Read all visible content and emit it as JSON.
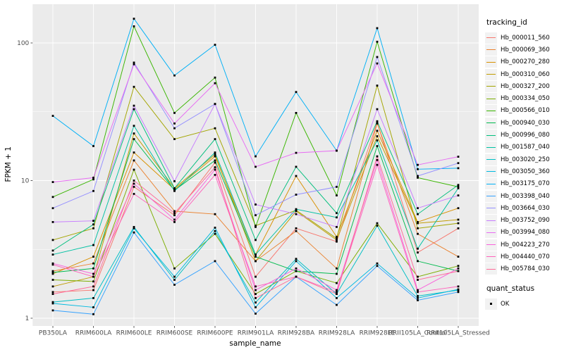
{
  "figure": {
    "background": "#FFFFFF",
    "panel_background": "#EBEBEB",
    "grid_color": "#FFFFFF",
    "tick_color": "#333333",
    "tick_label_color": "#4D4D4D"
  },
  "axes": {
    "x_title": "sample_name",
    "y_title": "FPKM + 1",
    "y_tick_labels": [
      "100",
      "10",
      "1"
    ]
  },
  "legend": {
    "tracking_title": "tracking_id",
    "quant_title": "quant_status",
    "quant_items": [
      {
        "label": "OK",
        "symbol": "black-square"
      }
    ]
  },
  "chart_data": {
    "type": "line",
    "title": "",
    "xlabel": "sample_name",
    "ylabel": "FPKM + 1",
    "y_scale": "log10",
    "ylim": [
      0.88,
      190
    ],
    "y_major_ticks": [
      1,
      10,
      100
    ],
    "y_minor_ticks": [
      3.1623,
      31.623
    ],
    "grid": true,
    "legend_position": "right",
    "point_marker": {
      "shape": "square",
      "color": "#000000",
      "status_label": "OK"
    },
    "categories": [
      "PB350LA",
      "RRIM600LA",
      "RRIM600LE",
      "RRIM600SE",
      "RRIM600PE",
      "RRIM901LA",
      "RRIM928BA",
      "RRIM928LA",
      "RRIM928LE",
      "RRII105LA_Control",
      "RRII105LA_Stressed"
    ],
    "series": [
      {
        "name": "Hb_000011_560",
        "color": "#F8766D",
        "values": [
          1.55,
          1.6,
          9.0,
          5.6,
          13.5,
          2.0,
          4.5,
          3.6,
          26.5,
          3.0,
          4.5
        ]
      },
      {
        "name": "Hb_000069_360",
        "color": "#EA8331",
        "values": [
          2.2,
          2.5,
          14,
          6.0,
          5.7,
          2.6,
          4.3,
          2.3,
          26,
          4.1,
          2.8
        ]
      },
      {
        "name": "Hb_000270_280",
        "color": "#D89000",
        "values": [
          2.1,
          2.8,
          16,
          8.6,
          15,
          2.9,
          10.8,
          3.9,
          23,
          5.0,
          6.3
        ]
      },
      {
        "name": "Hb_000310_060",
        "color": "#C09B00",
        "values": [
          1.7,
          2.0,
          22,
          8.8,
          15.5,
          2.6,
          6.0,
          3.7,
          21,
          4.9,
          5.2
        ]
      },
      {
        "name": "Hb_000327_200",
        "color": "#A3A500",
        "values": [
          3.7,
          4.5,
          48,
          20,
          24,
          4.7,
          6.1,
          3.8,
          49,
          4.5,
          4.9
        ]
      },
      {
        "name": "Hb_000334_050",
        "color": "#7CAE00",
        "values": [
          1.9,
          1.85,
          12,
          2.3,
          4.1,
          1.5,
          2.2,
          1.8,
          4.9,
          2.0,
          2.4
        ]
      },
      {
        "name": "Hb_000566_010",
        "color": "#39B600",
        "values": [
          7.6,
          10.2,
          132,
          31,
          56,
          4.6,
          31,
          7.8,
          102,
          10.5,
          9.0
        ]
      },
      {
        "name": "Hb_000940_030",
        "color": "#00BB4E",
        "values": [
          2.15,
          2.3,
          20,
          8.5,
          14,
          2.8,
          2.2,
          2.1,
          17.8,
          2.6,
          2.2
        ]
      },
      {
        "name": "Hb_000996_080",
        "color": "#00BF7D",
        "values": [
          3.1,
          4.8,
          33,
          8.8,
          20,
          3.7,
          12.6,
          5.8,
          27,
          5.7,
          9.3
        ]
      },
      {
        "name": "Hb_001587_040",
        "color": "#00C1A3",
        "values": [
          2.9,
          3.4,
          25,
          8.4,
          16,
          2.9,
          6.2,
          5.4,
          19.6,
          3.2,
          8.8
        ]
      },
      {
        "name": "Hb_003020_250",
        "color": "#00BFC4",
        "values": [
          1.31,
          1.4,
          4.6,
          1.9,
          4.3,
          1.3,
          2.7,
          1.5,
          4.7,
          1.45,
          1.6
        ]
      },
      {
        "name": "Hb_003050_360",
        "color": "#00BAE0",
        "values": [
          1.28,
          1.2,
          4.5,
          2.0,
          4.55,
          1.2,
          2.6,
          1.4,
          2.5,
          1.4,
          1.62
        ]
      },
      {
        "name": "Hb_003175_070",
        "color": "#00B0F6",
        "values": [
          29.5,
          17.8,
          150,
          58,
          97,
          15,
          44,
          16.5,
          128,
          12.1,
          12.3
        ]
      },
      {
        "name": "Hb_003398_040",
        "color": "#35A2FF",
        "values": [
          1.14,
          1.07,
          4.2,
          1.75,
          2.6,
          1.08,
          2.0,
          1.25,
          2.4,
          1.35,
          1.55
        ]
      },
      {
        "name": "Hb_003664_030",
        "color": "#9590FF",
        "values": [
          6.3,
          8.4,
          72,
          24,
          36,
          5.6,
          7.9,
          9.0,
          79,
          10.8,
          13.4
        ]
      },
      {
        "name": "Hb_003752_090",
        "color": "#C77CFF",
        "values": [
          5.0,
          5.1,
          35,
          9.9,
          36,
          6.7,
          5.7,
          4.6,
          33,
          6.3,
          7.8
        ]
      },
      {
        "name": "Hb_003994_080",
        "color": "#E76BF3",
        "values": [
          9.75,
          10.5,
          70,
          26,
          51,
          12.6,
          15.9,
          16.5,
          71,
          13.0,
          14.9
        ]
      },
      {
        "name": "Hb_004223_270",
        "color": "#FA62DB",
        "values": [
          2.5,
          2.1,
          9.5,
          5.2,
          12,
          1.6,
          2.3,
          1.6,
          14.1,
          1.6,
          2.3
        ]
      },
      {
        "name": "Hb_004440_070",
        "color": "#FF62BC",
        "values": [
          2.45,
          2.0,
          8.0,
          5.0,
          11,
          1.7,
          2.0,
          1.55,
          13,
          1.55,
          1.7
        ]
      },
      {
        "name": "Hb_005784_030",
        "color": "#FF6A98",
        "values": [
          1.5,
          1.7,
          10,
          5.8,
          12.5,
          1.4,
          2.0,
          1.5,
          15,
          1.9,
          2.2
        ]
      }
    ]
  }
}
